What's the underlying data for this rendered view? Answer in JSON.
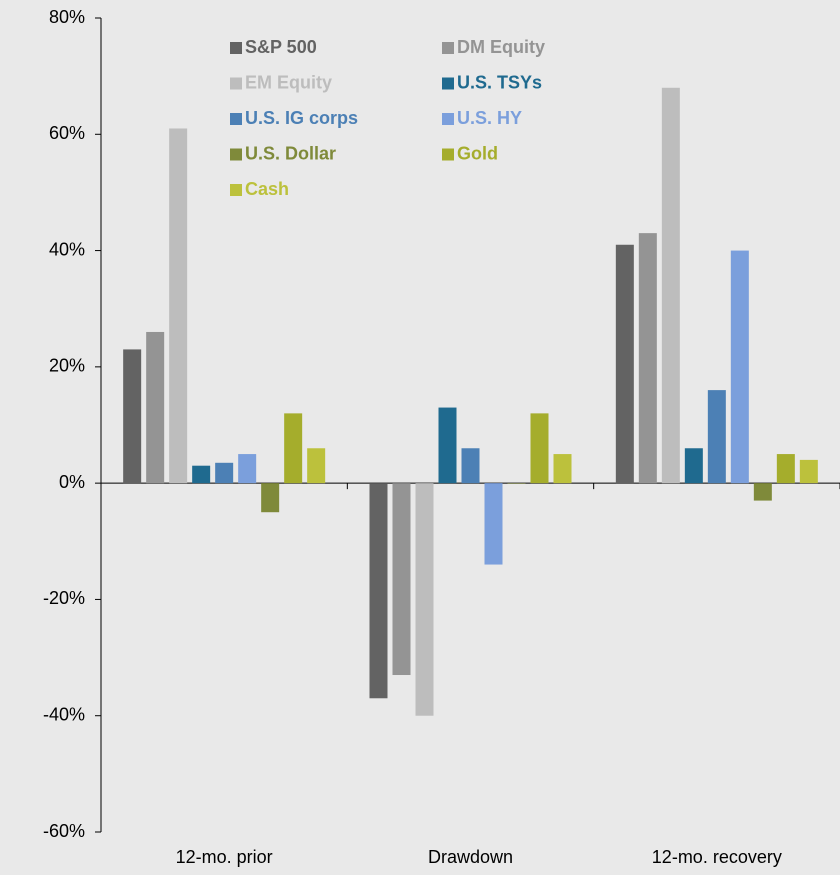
{
  "chart_data": {
    "type": "bar",
    "categories": [
      "12-mo. prior",
      "Drawdown",
      "12-mo. recovery"
    ],
    "series": [
      {
        "name": "S&P 500",
        "color": "#636363",
        "values": [
          23,
          -37,
          41
        ]
      },
      {
        "name": "DM Equity",
        "color": "#949494",
        "values": [
          26,
          -33,
          43
        ]
      },
      {
        "name": "EM Equity",
        "color": "#bdbdbd",
        "values": [
          61,
          -40,
          68
        ]
      },
      {
        "name": "U.S. TSYs",
        "color": "#1f6a8f",
        "values": [
          3,
          13,
          6
        ]
      },
      {
        "name": "U.S. IG corps",
        "color": "#4c80b5",
        "values": [
          3.5,
          6,
          16
        ]
      },
      {
        "name": "U.S. HY",
        "color": "#7b9fdc",
        "values": [
          5,
          -14,
          40
        ]
      },
      {
        "name": "U.S. Dollar",
        "color": "#7f8a3a",
        "values": [
          -5,
          0,
          -3
        ]
      },
      {
        "name": "Gold",
        "color": "#a5ad2c",
        "values": [
          12,
          12,
          5
        ]
      },
      {
        "name": "Cash",
        "color": "#bcc13c",
        "values": [
          6,
          5,
          4
        ]
      }
    ],
    "ylim": [
      -60,
      80
    ],
    "yticks": [
      {
        "value": -60,
        "label": "-60%"
      },
      {
        "value": -40,
        "label": "-40%"
      },
      {
        "value": -20,
        "label": "-20%"
      },
      {
        "value": 0,
        "label": "0%"
      },
      {
        "value": 20,
        "label": "20%"
      },
      {
        "value": 40,
        "label": "40%"
      },
      {
        "value": 60,
        "label": "60%"
      },
      {
        "value": 80,
        "label": "80%"
      }
    ],
    "grid": false,
    "legend": "top"
  }
}
